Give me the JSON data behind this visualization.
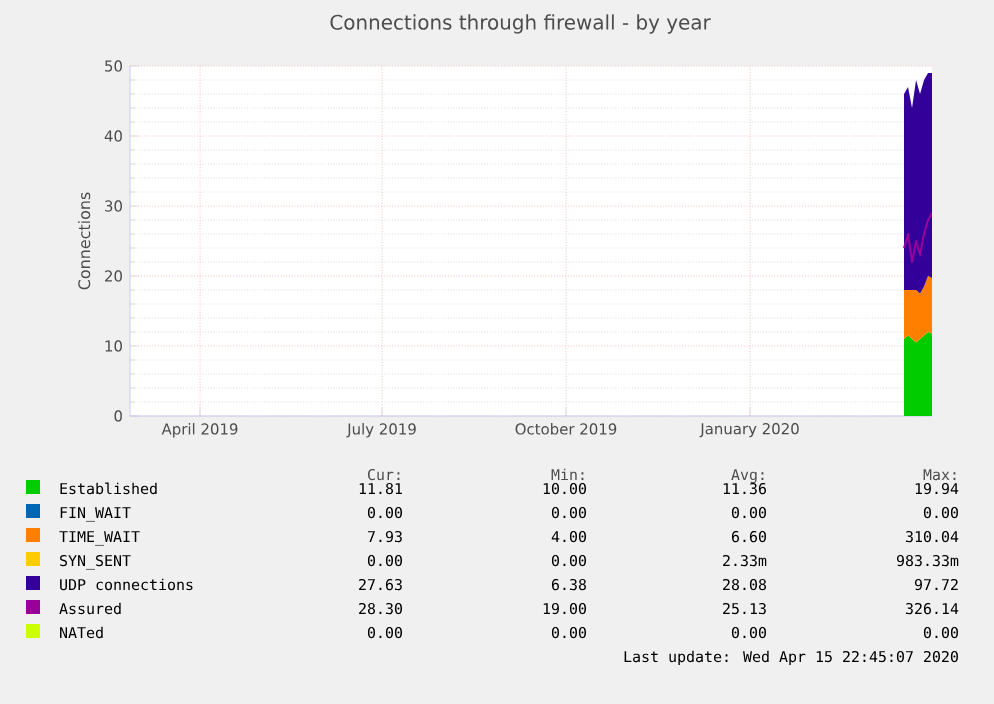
{
  "chart_data": {
    "type": "area",
    "title": "Connections through firewall - by year",
    "ylabel": "Connections",
    "stacked": true,
    "grid": true,
    "legend": "bottom",
    "x": [
      "2020-04-01",
      "2020-04-03",
      "2020-04-05",
      "2020-04-07",
      "2020-04-09",
      "2020-04-11",
      "2020-04-13",
      "2020-04-15"
    ],
    "xlim": [
      "2019-03-11",
      "2020-04-15"
    ],
    "xticks": [
      {
        "value": "2019-04-15",
        "label": "April 2019"
      },
      {
        "value": "2019-07-15",
        "label": "July 2019"
      },
      {
        "value": "2019-10-15",
        "label": "October 2019"
      },
      {
        "value": "2020-01-15",
        "label": "January 2020"
      }
    ],
    "ylim": [
      0,
      50
    ],
    "yticks": [
      0,
      10,
      20,
      30,
      40,
      50
    ],
    "series": [
      {
        "name": "Established",
        "color": "#00cc00",
        "values": [
          11,
          11.5,
          11,
          10.5,
          11,
          11.5,
          12,
          11.8
        ]
      },
      {
        "name": "FIN_WAIT",
        "color": "#0066b3",
        "values": [
          null,
          null,
          null,
          null,
          null,
          null,
          null,
          null
        ]
      },
      {
        "name": "TIME_WAIT",
        "color": "#ff8000",
        "values": [
          7,
          6.5,
          7,
          7.5,
          6.5,
          7,
          8,
          7.9
        ]
      },
      {
        "name": "SYN_SENT",
        "color": "#ffcc00",
        "values": [
          null,
          null,
          null,
          null,
          null,
          null,
          null,
          null
        ]
      },
      {
        "name": "UDP connections",
        "color": "#330099",
        "values": [
          28,
          29,
          26,
          30,
          28.5,
          29.5,
          29,
          29.3
        ]
      },
      {
        "name": "Assured",
        "color": "#990099",
        "type": "line",
        "values": [
          24,
          26,
          22,
          25,
          23,
          26,
          28,
          29
        ]
      },
      {
        "name": "NATed",
        "color": "#ccff00",
        "type": "line",
        "values": [
          null,
          null,
          null,
          null,
          null,
          null,
          null,
          null
        ]
      }
    ],
    "annotations": [
      "Cur:",
      "Min:",
      "Avg:",
      "Max:",
      "11.81",
      "10.00",
      "11.36",
      "19.94",
      "0.00",
      "0.00",
      "0.00",
      "0.00",
      "7.93",
      "4.00",
      "6.60",
      "310.04",
      "0.00",
      "0.00",
      "2.33m",
      "983.33m",
      "27.63",
      "6.38",
      "28.08",
      "97.72",
      "28.30",
      "19.00",
      "25.13",
      "326.14",
      "0.00",
      "0.00",
      "0.00",
      "0.00",
      "Last update: Wed Apr 15 22:45:07 2020"
    ]
  }
}
